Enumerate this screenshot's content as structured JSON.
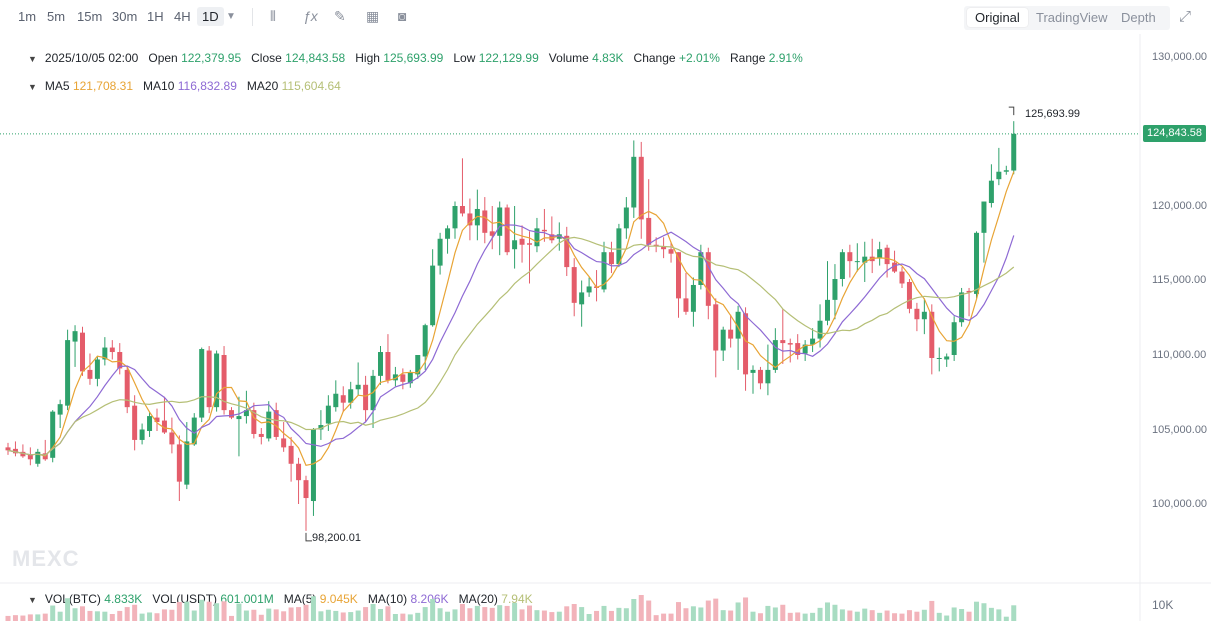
{
  "toolbar": {
    "timeframes": [
      "1m",
      "5m",
      "15m",
      "30m",
      "1H",
      "4H",
      "1D"
    ],
    "active_timeframe": "1D",
    "views": [
      "Original",
      "TradingView",
      "Depth"
    ],
    "active_view": "Original"
  },
  "info": {
    "date": "2025/10/05 02:00",
    "open_label": "Open",
    "open": "122,379.95",
    "close_label": "Close",
    "close": "124,843.58",
    "high_label": "High",
    "high": "125,693.99",
    "low_label": "Low",
    "low": "122,129.99",
    "volume_label": "Volume",
    "volume": "4.83K",
    "change_label": "Change",
    "change": "+2.01%",
    "range_label": "Range",
    "range": "2.91%"
  },
  "ma": {
    "ma5_label": "MA5",
    "ma5": "121,708.31",
    "ma10_label": "MA10",
    "ma10": "116,832.89",
    "ma20_label": "MA20",
    "ma20": "115,604.64"
  },
  "vol": {
    "vol_btc_label": "VOL(BTC)",
    "vol_btc": "4.833K",
    "vol_usdt_label": "VOL(USDT)",
    "vol_usdt": "601.001M",
    "ma5_label": "MA(5)",
    "ma5": "9.045K",
    "ma10_label": "MA(10)",
    "ma10": "8.206K",
    "ma20_label": "MA(20)",
    "ma20": "7.94K",
    "axis_label": "10K"
  },
  "annotations": {
    "max": "125,693.99",
    "min": "98,200.01",
    "last_price": "124,843.58"
  },
  "brand": "MEXC",
  "colors": {
    "up": "#2ea16b",
    "down": "#e45c6a",
    "ma5": "#e8a435",
    "ma10": "#8e6ad4",
    "ma20": "#b5bf76"
  },
  "chart_data": {
    "type": "candlestick",
    "y_axis_ticks": [
      "130,000.00",
      "120,000.00",
      "115,000.00",
      "110,000.00",
      "105,000.00",
      "100,000.00"
    ],
    "ylim": [
      96000,
      131000
    ],
    "last_price": 124843.58,
    "series": [
      {
        "name": "OHLC",
        "values": [
          [
            103800,
            104100,
            103300,
            103600
          ],
          [
            103700,
            104200,
            103200,
            103400
          ],
          [
            103500,
            104000,
            103100,
            103200
          ],
          [
            103300,
            103800,
            102600,
            103000
          ],
          [
            102700,
            103700,
            102500,
            103500
          ],
          [
            103400,
            104300,
            102900,
            103000
          ],
          [
            103100,
            106300,
            102800,
            106200
          ],
          [
            106000,
            107000,
            105100,
            106700
          ],
          [
            106600,
            111700,
            106300,
            111000
          ],
          [
            110900,
            112000,
            109200,
            111600
          ],
          [
            111500,
            111900,
            108600,
            108900
          ],
          [
            109000,
            110100,
            108000,
            108400
          ],
          [
            108400,
            109900,
            107900,
            109700
          ],
          [
            109700,
            111200,
            109300,
            110500
          ],
          [
            110500,
            111000,
            109700,
            110200
          ],
          [
            110200,
            110800,
            108700,
            109100
          ],
          [
            109000,
            109200,
            106100,
            106500
          ],
          [
            106600,
            107300,
            103600,
            104300
          ],
          [
            104300,
            105400,
            104000,
            105000
          ],
          [
            104900,
            106200,
            104500,
            105900
          ],
          [
            105800,
            106400,
            104900,
            105500
          ],
          [
            105600,
            107200,
            104700,
            104800
          ],
          [
            104800,
            105800,
            103400,
            104000
          ],
          [
            104000,
            104600,
            100200,
            101500
          ],
          [
            101300,
            105500,
            101000,
            104200
          ],
          [
            104000,
            106100,
            103900,
            105800
          ],
          [
            105800,
            110500,
            105500,
            110400
          ],
          [
            110300,
            110600,
            106100,
            106500
          ],
          [
            106500,
            110300,
            106200,
            110100
          ],
          [
            110000,
            110600,
            106000,
            106300
          ],
          [
            106300,
            106500,
            105700,
            105800
          ],
          [
            105700,
            107200,
            103200,
            105900
          ],
          [
            105900,
            107600,
            105400,
            106300
          ],
          [
            106300,
            106800,
            104400,
            104700
          ],
          [
            104700,
            105100,
            104000,
            104500
          ],
          [
            104400,
            106900,
            104200,
            106200
          ],
          [
            106300,
            106800,
            104300,
            104500
          ],
          [
            104400,
            105500,
            103500,
            103800
          ],
          [
            103900,
            104500,
            101500,
            102700
          ],
          [
            102700,
            103100,
            100000,
            101600
          ],
          [
            101600,
            101900,
            98200,
            100400
          ],
          [
            100200,
            105100,
            99200,
            105000
          ],
          [
            105000,
            106300,
            104300,
            105300
          ],
          [
            105400,
            107300,
            104900,
            106600
          ],
          [
            106500,
            108300,
            106200,
            107400
          ],
          [
            107300,
            107900,
            106200,
            106800
          ],
          [
            106800,
            108200,
            106400,
            107700
          ],
          [
            107700,
            109500,
            107300,
            108000
          ],
          [
            108000,
            108600,
            105500,
            106300
          ],
          [
            106300,
            109000,
            105100,
            108600
          ],
          [
            108600,
            110600,
            108000,
            110200
          ],
          [
            110200,
            111400,
            108100,
            108300
          ],
          [
            108300,
            109200,
            107900,
            108700
          ],
          [
            108700,
            109100,
            107700,
            108200
          ],
          [
            108100,
            109000,
            107800,
            108800
          ],
          [
            108700,
            110000,
            108400,
            110000
          ],
          [
            109900,
            112100,
            109000,
            112000
          ],
          [
            112000,
            117100,
            111900,
            116000
          ],
          [
            116000,
            118200,
            115400,
            117800
          ],
          [
            117800,
            118700,
            116800,
            118500
          ],
          [
            118500,
            120300,
            117800,
            120000
          ],
          [
            120000,
            123200,
            119300,
            119500
          ],
          [
            119500,
            120500,
            117700,
            118700
          ],
          [
            118700,
            121100,
            117700,
            119800
          ],
          [
            119700,
            120600,
            117500,
            118200
          ],
          [
            118300,
            120000,
            117100,
            118000
          ],
          [
            118000,
            120300,
            116700,
            119900
          ],
          [
            119900,
            120100,
            116700,
            116900
          ],
          [
            117100,
            120000,
            115800,
            117700
          ],
          [
            117800,
            118700,
            116200,
            117400
          ],
          [
            117500,
            118300,
            114800,
            117400
          ],
          [
            117300,
            119200,
            116900,
            118500
          ],
          [
            118400,
            119800,
            117600,
            118300
          ],
          [
            118100,
            119300,
            117500,
            117700
          ],
          [
            117800,
            118900,
            117000,
            118100
          ],
          [
            118000,
            118600,
            115300,
            115900
          ],
          [
            115900,
            116500,
            112600,
            113500
          ],
          [
            113400,
            115000,
            111900,
            114200
          ],
          [
            114200,
            115200,
            113900,
            114600
          ],
          [
            114600,
            115700,
            113600,
            114500
          ],
          [
            114400,
            117600,
            114200,
            116900
          ],
          [
            116900,
            117600,
            115500,
            116100
          ],
          [
            116100,
            118800,
            115900,
            118500
          ],
          [
            118500,
            120600,
            117800,
            119900
          ],
          [
            119900,
            124400,
            119200,
            123300
          ],
          [
            123300,
            124300,
            117800,
            119100
          ],
          [
            119200,
            121800,
            117000,
            117400
          ],
          [
            117400,
            117900,
            116900,
            117300
          ],
          [
            117300,
            117900,
            116500,
            117100
          ],
          [
            117100,
            117600,
            116200,
            116800
          ],
          [
            116900,
            116900,
            112500,
            113800
          ],
          [
            113800,
            115500,
            112700,
            112900
          ],
          [
            112900,
            115200,
            111900,
            114700
          ],
          [
            114700,
            117400,
            114400,
            116900
          ],
          [
            116900,
            117200,
            112400,
            113300
          ],
          [
            113400,
            113800,
            108500,
            110300
          ],
          [
            110300,
            111900,
            109600,
            111700
          ],
          [
            111700,
            112700,
            110500,
            111100
          ],
          [
            111100,
            113300,
            109000,
            112900
          ],
          [
            112800,
            113200,
            107600,
            108700
          ],
          [
            108800,
            109300,
            107400,
            109000
          ],
          [
            109000,
            109200,
            107700,
            108100
          ],
          [
            108100,
            110700,
            107300,
            109000
          ],
          [
            109000,
            111800,
            108800,
            111000
          ],
          [
            111000,
            113100,
            109400,
            110800
          ],
          [
            110800,
            111100,
            109500,
            110700
          ],
          [
            110800,
            111400,
            109700,
            110000
          ],
          [
            110100,
            111000,
            109600,
            110700
          ],
          [
            110700,
            111800,
            110200,
            111100
          ],
          [
            111100,
            113400,
            110500,
            112300
          ],
          [
            112300,
            116300,
            112000,
            113700
          ],
          [
            113700,
            116100,
            112400,
            115100
          ],
          [
            115100,
            117100,
            114600,
            116900
          ],
          [
            116900,
            117400,
            115200,
            116300
          ],
          [
            116300,
            117500,
            115600,
            116300
          ],
          [
            116200,
            117600,
            114900,
            116600
          ],
          [
            116600,
            117800,
            115500,
            116300
          ],
          [
            116500,
            117600,
            116000,
            117100
          ],
          [
            117200,
            117400,
            115200,
            116100
          ],
          [
            116200,
            117000,
            115500,
            115600
          ],
          [
            115600,
            115900,
            114500,
            114800
          ],
          [
            114900,
            115100,
            112800,
            113100
          ],
          [
            113100,
            113500,
            111600,
            112400
          ],
          [
            112400,
            113800,
            111400,
            112900
          ],
          [
            112900,
            113400,
            108700,
            109800
          ],
          [
            109800,
            110500,
            108900,
            109800
          ],
          [
            109700,
            110100,
            109200,
            109900
          ],
          [
            110000,
            112600,
            109600,
            112200
          ],
          [
            112200,
            114500,
            111900,
            114200
          ],
          [
            114300,
            114500,
            112600,
            114200
          ],
          [
            114100,
            118300,
            113800,
            118200
          ],
          [
            118200,
            120300,
            116200,
            120300
          ],
          [
            120200,
            122800,
            119900,
            121700
          ],
          [
            121800,
            123900,
            121400,
            122300
          ],
          [
            122300,
            122700,
            122100,
            122400
          ],
          [
            122380,
            125694,
            122130,
            124844
          ]
        ]
      }
    ],
    "volume_axis": "10K"
  }
}
